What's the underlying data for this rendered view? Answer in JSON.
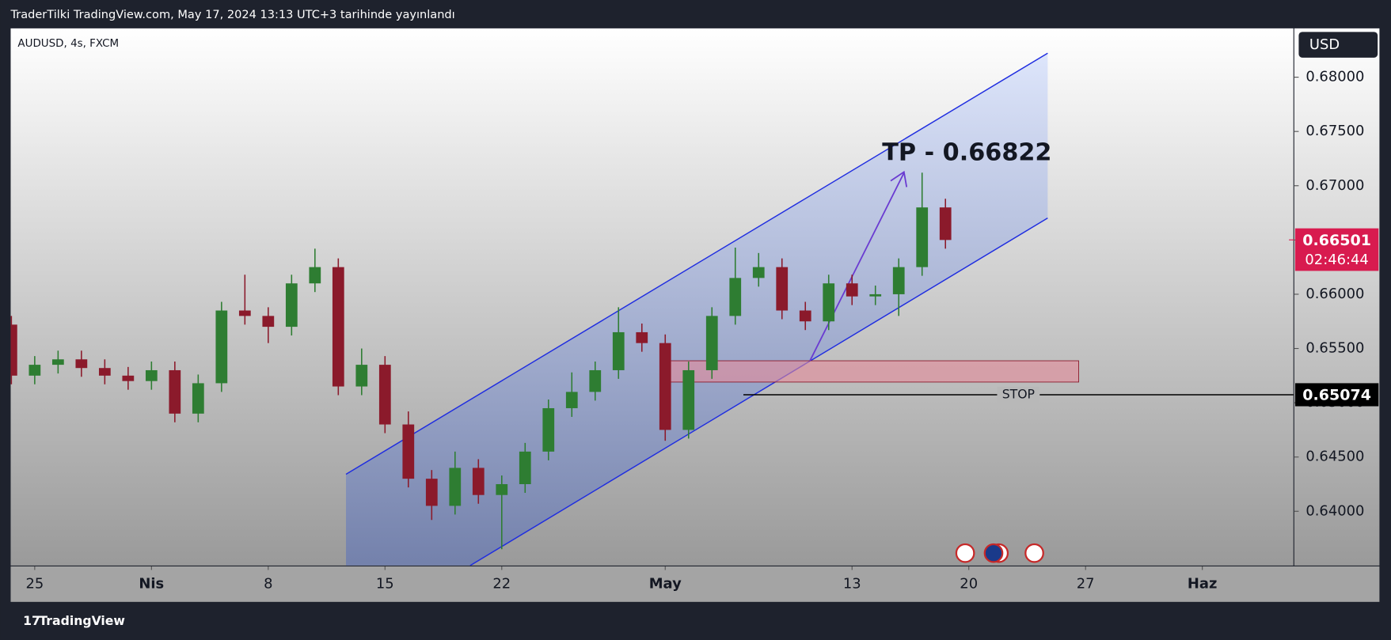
{
  "header": "TraderTilki TradingView.com, May 17, 2024 13:13 UTC+3 tarihinde yayınlandı",
  "footer": "TradingView",
  "chart_data": {
    "type": "candlestick",
    "symbol": "AUDUSD, 4s, FXCM",
    "currency": "USD",
    "up_color": "#2e7d32",
    "down_color": "#8b1a2b",
    "x": [
      -1,
      0,
      1,
      2,
      3,
      4,
      5,
      6,
      7,
      8,
      9,
      10,
      11,
      12,
      13,
      14,
      15,
      16,
      17,
      18,
      19,
      20,
      21,
      22,
      23,
      24,
      25,
      26,
      27,
      28,
      29,
      30,
      31,
      32,
      33,
      34,
      35,
      36,
      37,
      38,
      39
    ],
    "open": [
      0.6572,
      0.6525,
      0.6535,
      0.654,
      0.6532,
      0.6525,
      0.652,
      0.653,
      0.649,
      0.6518,
      0.6585,
      0.658,
      0.657,
      0.661,
      0.6625,
      0.6515,
      0.6535,
      0.648,
      0.643,
      0.6405,
      0.644,
      0.6415,
      0.6425,
      0.6455,
      0.6495,
      0.651,
      0.653,
      0.6565,
      0.6555,
      0.6475,
      0.653,
      0.658,
      0.6615,
      0.6625,
      0.6585,
      0.6575,
      0.661,
      0.6598,
      0.66,
      0.6625,
      0.668
    ],
    "high": [
      0.658,
      0.6543,
      0.6548,
      0.6548,
      0.654,
      0.6533,
      0.6538,
      0.6538,
      0.6526,
      0.6593,
      0.6618,
      0.6588,
      0.6618,
      0.6642,
      0.6633,
      0.655,
      0.6543,
      0.6492,
      0.6438,
      0.6455,
      0.6448,
      0.6433,
      0.6463,
      0.6503,
      0.6528,
      0.6538,
      0.6588,
      0.6573,
      0.6563,
      0.6538,
      0.6588,
      0.6643,
      0.6638,
      0.6633,
      0.6593,
      0.6618,
      0.6618,
      0.6608,
      0.6633,
      0.6712,
      0.6688
    ],
    "low": [
      0.6517,
      0.6517,
      0.6527,
      0.6524,
      0.6517,
      0.6512,
      0.6512,
      0.6482,
      0.6482,
      0.651,
      0.6572,
      0.6555,
      0.6562,
      0.6602,
      0.6507,
      0.6507,
      0.6472,
      0.6422,
      0.6392,
      0.6397,
      0.6407,
      0.6365,
      0.6417,
      0.6447,
      0.6487,
      0.6502,
      0.6522,
      0.6547,
      0.6465,
      0.6467,
      0.6522,
      0.6572,
      0.6607,
      0.6577,
      0.6567,
      0.6567,
      0.659,
      0.659,
      0.658,
      0.6617,
      0.6642
    ],
    "close": [
      0.6525,
      0.6535,
      0.654,
      0.6532,
      0.6525,
      0.652,
      0.653,
      0.649,
      0.6518,
      0.6585,
      0.658,
      0.657,
      0.661,
      0.6625,
      0.6515,
      0.6535,
      0.648,
      0.643,
      0.6405,
      0.644,
      0.6415,
      0.6425,
      0.6455,
      0.6495,
      0.651,
      0.653,
      0.6565,
      0.6555,
      0.6475,
      0.653,
      0.658,
      0.6615,
      0.6625,
      0.6585,
      0.6575,
      0.661,
      0.6598,
      0.66,
      0.6625,
      0.668,
      0.665
    ],
    "xlim": [
      -1.03,
      53.9
    ],
    "ylim": [
      0.635,
      0.6845
    ],
    "xticks": [
      {
        "value": 0,
        "label": "25"
      },
      {
        "value": 5,
        "label": "Nis"
      },
      {
        "value": 10,
        "label": "8"
      },
      {
        "value": 15,
        "label": "15"
      },
      {
        "value": 20,
        "label": "22"
      },
      {
        "value": 27,
        "label": "May"
      },
      {
        "value": 35,
        "label": "13"
      },
      {
        "value": 40,
        "label": "20"
      },
      {
        "value": 45,
        "label": "27"
      },
      {
        "value": 50,
        "label": "Haz"
      }
    ],
    "yticks": [
      {
        "value": 0.64,
        "label": "0.64000"
      },
      {
        "value": 0.645,
        "label": "0.64500"
      },
      {
        "value": 0.65,
        "label": "0.65000"
      },
      {
        "value": 0.655,
        "label": "0.65500"
      },
      {
        "value": 0.66,
        "label": "0.66000"
      },
      {
        "value": 0.665,
        "label": "0.66500"
      },
      {
        "value": 0.67,
        "label": "0.67000"
      },
      {
        "value": 0.675,
        "label": "0.67500"
      },
      {
        "value": 0.68,
        "label": "0.68000"
      }
    ],
    "last_price": 0.66501,
    "countdown": "02:46:44",
    "stop_price": 0.65074,
    "tp_label": "TP - 0.66822",
    "stop_label": "STOP"
  }
}
